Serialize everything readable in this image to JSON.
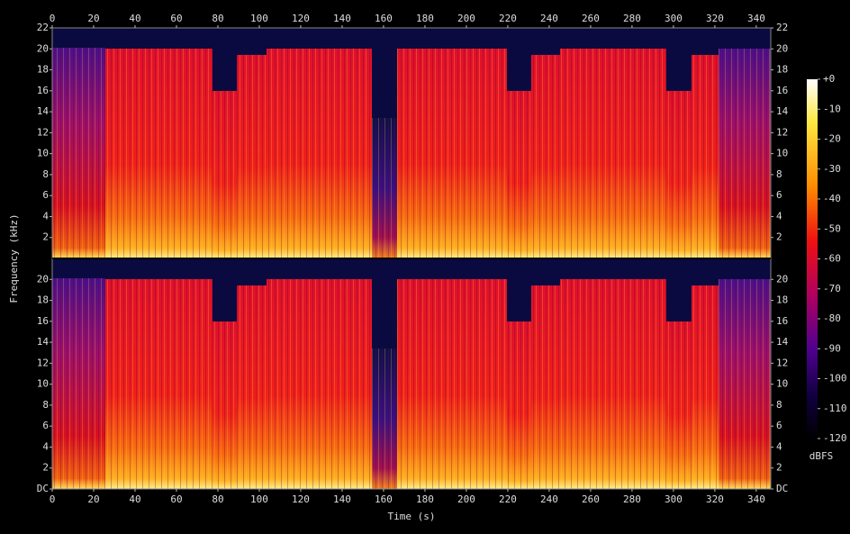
{
  "chart_data": {
    "type": "spectrogram",
    "x_label": "Time (s)",
    "y_label": "Frequency (kHz)",
    "xlim": [
      0,
      347
    ],
    "xticks": [
      0,
      20,
      40,
      60,
      80,
      100,
      120,
      140,
      160,
      180,
      200,
      220,
      240,
      260,
      280,
      300,
      320,
      340
    ],
    "ylim": [
      0,
      22
    ],
    "channels": [
      {
        "yticks": [
          2,
          4,
          6,
          8,
          10,
          12,
          14,
          16,
          18,
          20,
          22
        ]
      },
      {
        "yticks": [
          {
            "value": 0,
            "label": "DC"
          },
          2,
          4,
          6,
          8,
          10,
          12,
          14,
          16,
          18,
          20
        ]
      }
    ],
    "colorbar": {
      "label": "dBFS",
      "lim": [
        -120,
        0
      ],
      "ticks": [
        {
          "value": 0,
          "label": "+0"
        },
        -10,
        -20,
        -30,
        -40,
        -50,
        -60,
        -70,
        -80,
        -90,
        -100,
        -110,
        -120
      ]
    }
  }
}
